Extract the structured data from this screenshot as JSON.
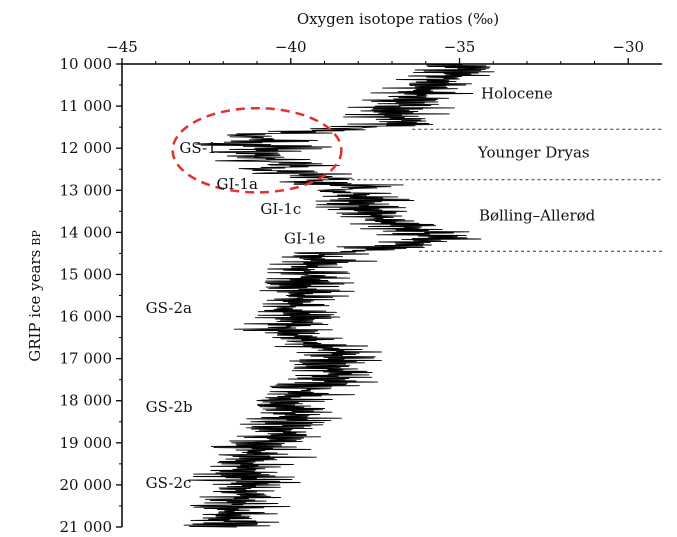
{
  "chart_data": {
    "type": "line",
    "title": "",
    "xlabel": "Oxygen isotope ratios (‰)",
    "ylabel": "GRIP ice years",
    "ylabel_suffix": "BP",
    "xlim": [
      -45,
      -29
    ],
    "ylim": [
      10000,
      21000
    ],
    "y_inverted": true,
    "x_axis_position": "top",
    "grid": false,
    "x_ticks": [
      -45,
      -40,
      -35,
      -30
    ],
    "x_tick_labels": [
      "−45",
      "−40",
      "−35",
      "−30"
    ],
    "y_ticks": [
      10000,
      11000,
      12000,
      13000,
      14000,
      15000,
      16000,
      17000,
      18000,
      19000,
      20000,
      21000
    ],
    "y_tick_labels": [
      "10 000",
      "11 000",
      "12 000",
      "13 000",
      "14 000",
      "15 000",
      "16 000",
      "17 000",
      "18 000",
      "19 000",
      "20 000",
      "21 000"
    ],
    "series_color": "#000000",
    "series": [
      {
        "points": [
          [
            -35.2,
            10000
          ],
          [
            -34.8,
            10200
          ],
          [
            -35.6,
            10400
          ],
          [
            -35.9,
            10600
          ],
          [
            -36.4,
            10800
          ],
          [
            -36.8,
            11000
          ],
          [
            -37.1,
            11200
          ],
          [
            -36.5,
            11400
          ],
          [
            -38.2,
            11550
          ],
          [
            -39.5,
            11600
          ],
          [
            -41.5,
            11700
          ],
          [
            -40.2,
            11800
          ],
          [
            -41.8,
            11900
          ],
          [
            -40.0,
            12000
          ],
          [
            -41.5,
            12100
          ],
          [
            -40.3,
            12200
          ],
          [
            -41.0,
            12300
          ],
          [
            -39.5,
            12400
          ],
          [
            -40.8,
            12500
          ],
          [
            -39.8,
            12600
          ],
          [
            -38.5,
            12700
          ],
          [
            -39.7,
            12800
          ],
          [
            -37.6,
            12900
          ],
          [
            -38.5,
            13000
          ],
          [
            -37.6,
            13200
          ],
          [
            -38.0,
            13400
          ],
          [
            -37.5,
            13600
          ],
          [
            -37.0,
            13800
          ],
          [
            -36.0,
            14000
          ],
          [
            -35.8,
            14200
          ],
          [
            -37.5,
            14400
          ],
          [
            -39.0,
            14500
          ],
          [
            -39.2,
            14700
          ],
          [
            -39.6,
            14900
          ],
          [
            -39.4,
            15100
          ],
          [
            -39.8,
            15300
          ],
          [
            -39.6,
            15500
          ],
          [
            -40.0,
            15800
          ],
          [
            -39.7,
            16000
          ],
          [
            -40.2,
            16300
          ],
          [
            -39.3,
            16600
          ],
          [
            -38.6,
            16800
          ],
          [
            -38.5,
            17000
          ],
          [
            -38.7,
            17200
          ],
          [
            -38.6,
            17400
          ],
          [
            -39.4,
            17700
          ],
          [
            -40.2,
            18000
          ],
          [
            -40.0,
            18200
          ],
          [
            -39.8,
            18500
          ],
          [
            -40.1,
            18700
          ],
          [
            -40.6,
            19000
          ],
          [
            -41.0,
            19300
          ],
          [
            -41.2,
            19600
          ],
          [
            -41.5,
            19900
          ],
          [
            -41.3,
            20200
          ],
          [
            -41.7,
            20500
          ],
          [
            -42.0,
            20700
          ],
          [
            -41.6,
            21000
          ]
        ]
      }
    ],
    "periods": [
      {
        "label": "Holocene",
        "x": -33.3,
        "y": 10700
      },
      {
        "label": "Younger Dryas",
        "x": -32.8,
        "y": 12100
      },
      {
        "label": "Bølling–Allerød",
        "x": -32.7,
        "y": 13600
      }
    ],
    "boundaries": [
      {
        "y": 11550,
        "x_from": -36.4,
        "x_to": -29
      },
      {
        "y": 12750,
        "x_from": -38.2,
        "x_to": -29
      },
      {
        "y": 14450,
        "x_from": -36.2,
        "x_to": -29
      }
    ],
    "stages": [
      {
        "label": "GS-1",
        "x": -43.3,
        "y": 12000
      },
      {
        "label": "GI-1a",
        "x": -42.2,
        "y": 12850
      },
      {
        "label": "GI-1c",
        "x": -40.9,
        "y": 13450
      },
      {
        "label": "GI-1e",
        "x": -40.2,
        "y": 14150
      },
      {
        "label": "GS-2a",
        "x": -44.3,
        "y": 15800
      },
      {
        "label": "GS-2b",
        "x": -44.3,
        "y": 18150
      },
      {
        "label": "GS-2c",
        "x": -44.3,
        "y": 19950
      }
    ],
    "highlight_ellipse": {
      "cx": -41.0,
      "cy": 12050,
      "rx": 2.5,
      "ry": 1000,
      "color": "#e53030",
      "style": "dashed"
    }
  }
}
